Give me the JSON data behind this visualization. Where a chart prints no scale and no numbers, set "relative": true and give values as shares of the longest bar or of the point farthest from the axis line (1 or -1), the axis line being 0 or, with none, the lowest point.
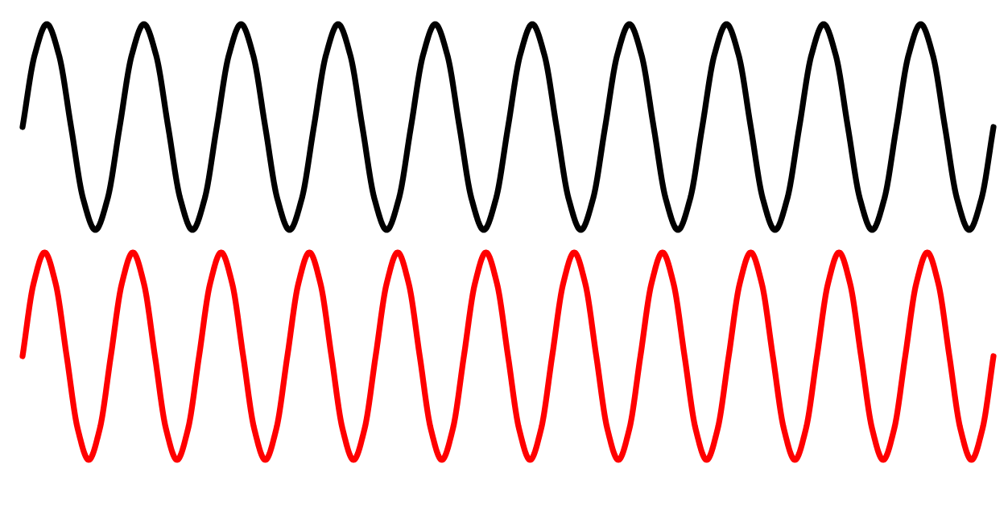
{
  "chart_data": [
    {
      "type": "line",
      "relative": true,
      "categories": [
        null,
        null,
        null,
        null,
        null,
        null,
        null,
        null,
        null,
        null,
        null,
        null,
        null,
        null,
        null,
        null,
        null,
        null,
        null,
        null,
        null,
        null,
        null,
        null,
        null,
        null,
        null,
        null,
        null,
        null,
        null,
        null,
        null,
        null,
        null,
        null,
        null,
        null,
        null,
        null,
        null,
        null,
        null,
        null,
        null,
        null,
        null,
        null,
        null,
        null,
        null,
        null,
        null,
        null,
        null,
        null,
        null,
        null,
        null,
        null,
        null,
        null,
        null,
        null,
        null,
        null,
        null,
        null,
        null,
        null,
        null,
        null,
        null,
        null,
        null,
        null,
        null,
        null,
        null,
        null,
        null
      ],
      "series": [
        {
          "color": "#000000",
          "values": [
            0.5,
            0.85,
            1,
            0.85,
            0.5,
            0.15,
            0,
            0.15,
            0.5,
            0.85,
            1,
            0.85,
            0.5,
            0.15,
            0,
            0.15,
            0.5,
            0.85,
            1,
            0.85,
            0.5,
            0.15,
            0,
            0.15,
            0.5,
            0.85,
            1,
            0.85,
            0.5,
            0.15,
            0,
            0.15,
            0.5,
            0.85,
            1,
            0.85,
            0.5,
            0.15,
            0,
            0.15,
            0.5,
            0.85,
            1,
            0.85,
            0.5,
            0.15,
            0,
            0.15,
            0.5,
            0.85,
            1,
            0.85,
            0.5,
            0.15,
            0,
            0.15,
            0.5,
            0.85,
            1,
            0.85,
            0.5,
            0.15,
            0,
            0.15,
            0.5,
            0.85,
            1,
            0.85,
            0.5,
            0.15,
            0,
            0.15,
            0.5,
            0.85,
            1,
            0.85,
            0.5,
            0.15,
            0,
            0.15,
            0.5
          ]
        }
      ]
    },
    {
      "type": "line",
      "relative": true,
      "categories": [
        null,
        null,
        null,
        null,
        null,
        null,
        null,
        null,
        null,
        null,
        null,
        null,
        null,
        null,
        null,
        null,
        null,
        null,
        null,
        null,
        null,
        null,
        null,
        null,
        null,
        null,
        null,
        null,
        null,
        null,
        null,
        null,
        null,
        null,
        null,
        null,
        null,
        null,
        null,
        null,
        null,
        null,
        null,
        null,
        null,
        null,
        null,
        null,
        null,
        null,
        null,
        null,
        null,
        null,
        null,
        null,
        null,
        null,
        null,
        null,
        null,
        null,
        null,
        null,
        null,
        null,
        null,
        null,
        null,
        null,
        null,
        null,
        null,
        null,
        null,
        null,
        null,
        null,
        null,
        null,
        null,
        null,
        null,
        null,
        null,
        null,
        null,
        null,
        null
      ],
      "series": [
        {
          "color": "#ff0000",
          "values": [
            0.5,
            0.85,
            1,
            0.85,
            0.5,
            0.15,
            0,
            0.15,
            0.5,
            0.85,
            1,
            0.85,
            0.5,
            0.15,
            0,
            0.15,
            0.5,
            0.85,
            1,
            0.85,
            0.5,
            0.15,
            0,
            0.15,
            0.5,
            0.85,
            1,
            0.85,
            0.5,
            0.15,
            0,
            0.15,
            0.5,
            0.85,
            1,
            0.85,
            0.5,
            0.15,
            0,
            0.15,
            0.5,
            0.85,
            1,
            0.85,
            0.5,
            0.15,
            0,
            0.15,
            0.5,
            0.85,
            1,
            0.85,
            0.5,
            0.15,
            0,
            0.15,
            0.5,
            0.85,
            1,
            0.85,
            0.5,
            0.15,
            0,
            0.15,
            0.5,
            0.85,
            1,
            0.85,
            0.5,
            0.15,
            0,
            0.15,
            0.5,
            0.85,
            1,
            0.85,
            0.5,
            0.15,
            0,
            0.15,
            0.5,
            0.85,
            1,
            0.85,
            0.5,
            0.15,
            0,
            0.15,
            0.5
          ]
        }
      ]
    }
  ]
}
